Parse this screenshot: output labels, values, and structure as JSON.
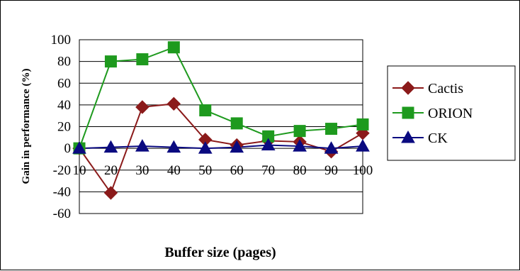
{
  "chart_data": {
    "type": "line",
    "title": "",
    "xlabel": "Buffer size (pages)",
    "ylabel": "Gain in performance (%)",
    "x": [
      10,
      20,
      30,
      40,
      50,
      60,
      70,
      80,
      90,
      100
    ],
    "ylim": [
      -60,
      100
    ],
    "yticks": [
      -60,
      -40,
      -20,
      0,
      20,
      40,
      60,
      80,
      100
    ],
    "grid": true,
    "legend": "right",
    "series": [
      {
        "name": "Cactis",
        "color": "#8B1A1A",
        "marker": "diamond",
        "values": [
          0,
          -41,
          38,
          41,
          8,
          3,
          7,
          6,
          -3,
          14
        ]
      },
      {
        "name": "ORION",
        "color": "#1E9A1E",
        "marker": "square",
        "values": [
          0,
          80,
          82,
          93,
          35,
          23,
          11,
          16,
          18,
          22
        ]
      },
      {
        "name": "CK",
        "color": "#0A0A80",
        "marker": "triangle",
        "values": [
          0,
          1,
          2,
          1,
          0,
          1,
          3,
          2,
          0,
          2
        ]
      }
    ]
  }
}
